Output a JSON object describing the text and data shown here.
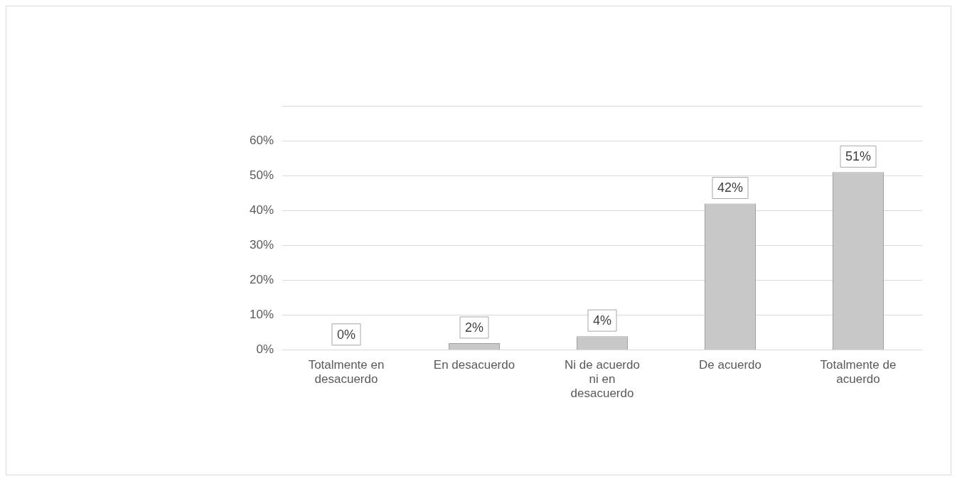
{
  "chart_data": {
    "type": "bar",
    "categories": [
      "Totalmente en desacuerdo",
      "En desacuerdo",
      "Ni de acuerdo ni en desacuerdo",
      "De acuerdo",
      "Totalmente de acuerdo"
    ],
    "values": [
      0,
      2,
      4,
      42,
      51
    ],
    "color": "#c8c8c8",
    "value_labels": [
      "0%",
      "2%",
      "4%",
      "42%",
      "51%"
    ],
    "ylim": [
      0,
      70
    ],
    "yticks": [
      {
        "value": 0,
        "label": "0%"
      },
      {
        "value": 10,
        "label": "10%"
      },
      {
        "value": 20,
        "label": "20%"
      },
      {
        "value": 30,
        "label": "30%"
      },
      {
        "value": 40,
        "label": "40%"
      },
      {
        "value": 50,
        "label": "50%"
      },
      {
        "value": 60,
        "label": "60%"
      },
      {
        "value": 70,
        "label": null
      }
    ],
    "grid": "y",
    "legend": false
  }
}
